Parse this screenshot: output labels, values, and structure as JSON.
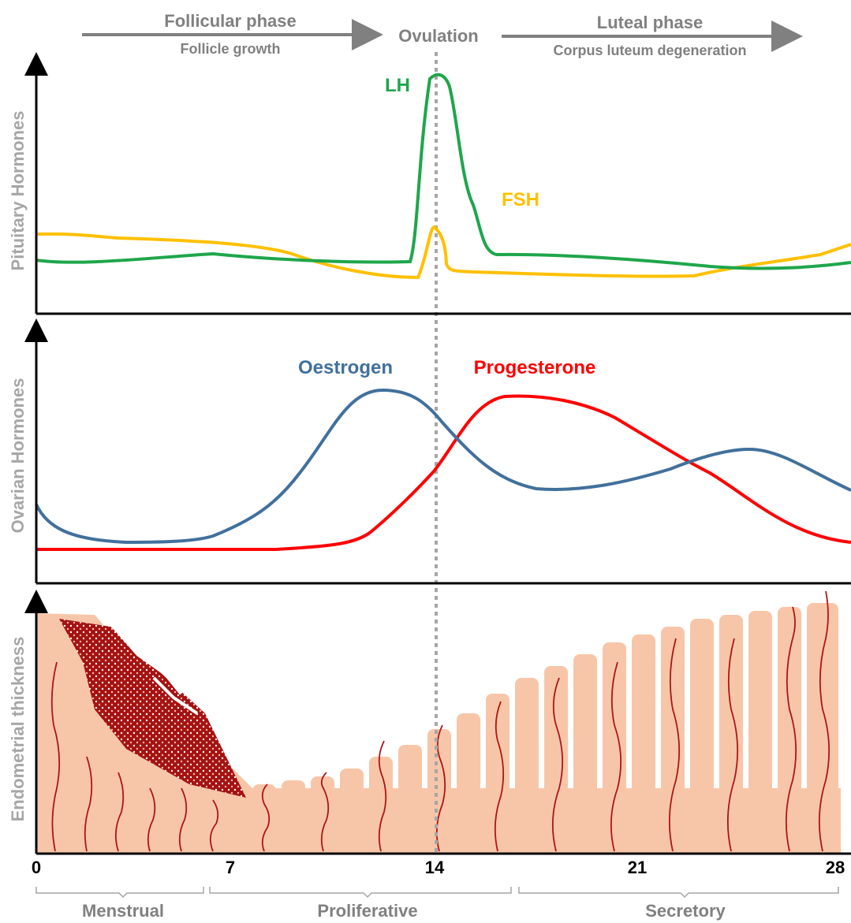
{
  "header": {
    "follicular_phase": "Follicular phase",
    "follicle_growth": "Follicle growth",
    "ovulation": "Ovulation",
    "luteal_phase": "Luteal phase",
    "luteal_sub": "Corpus luteum degeneration"
  },
  "panels": [
    {
      "ylabel": "Pituitary Hormones",
      "curves": [
        "LH",
        "FSH"
      ]
    },
    {
      "ylabel": "Ovarian Hormones",
      "curves": [
        "Oestrogen",
        "Progesterone"
      ]
    },
    {
      "ylabel": "Endometrial thickness"
    }
  ],
  "x_ticks": [
    "0",
    "7",
    "14",
    "21",
    "28"
  ],
  "phases": [
    "Menstrual",
    "Proliferative",
    "Secretory"
  ]
}
